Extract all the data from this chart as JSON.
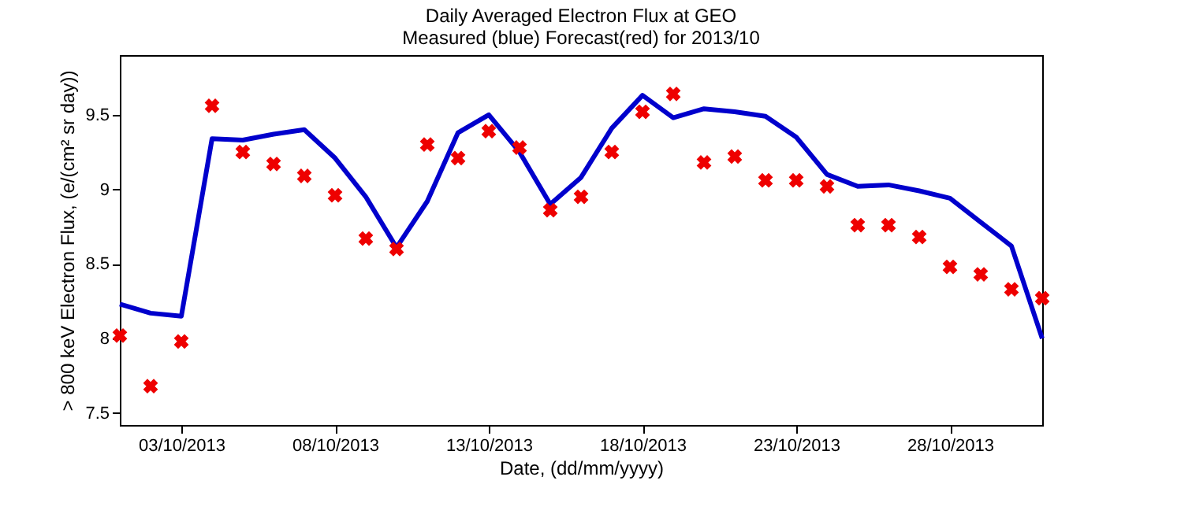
{
  "chart_data": {
    "type": "line",
    "title": "Daily Averaged Electron Flux at GEO",
    "subtitle": "Measured (blue) Forecast(red) for 2013/10",
    "xlabel": "Date, (dd/mm/yyyy)",
    "ylabel": "> 800 keV Electron Flux, (e/(cm² sr day))",
    "x": [
      "2013-10-01",
      "2013-10-02",
      "2013-10-03",
      "2013-10-04",
      "2013-10-05",
      "2013-10-06",
      "2013-10-07",
      "2013-10-08",
      "2013-10-09",
      "2013-10-10",
      "2013-10-11",
      "2013-10-12",
      "2013-10-13",
      "2013-10-14",
      "2013-10-15",
      "2013-10-16",
      "2013-10-17",
      "2013-10-18",
      "2013-10-19",
      "2013-10-20",
      "2013-10-21",
      "2013-10-22",
      "2013-10-23",
      "2013-10-24",
      "2013-10-25",
      "2013-10-26",
      "2013-10-27",
      "2013-10-28",
      "2013-10-29",
      "2013-10-30",
      "2013-10-31"
    ],
    "series": [
      {
        "color": "#0000cc",
        "values": [
          8.23,
          8.17,
          8.15,
          9.34,
          9.33,
          9.37,
          9.4,
          9.21,
          8.95,
          8.61,
          8.92,
          9.38,
          9.5,
          9.25,
          8.9,
          9.08,
          9.41,
          9.63,
          9.48,
          9.54,
          9.52,
          9.49,
          9.35,
          9.1,
          9.02,
          9.03,
          8.99,
          8.94,
          8.78,
          8.62,
          8.0
        ]
      },
      {
        "type": "scatter",
        "color": "#ee0000",
        "marker": "cross",
        "values": [
          8.02,
          7.68,
          7.98,
          9.56,
          9.25,
          9.17,
          9.09,
          8.96,
          8.67,
          8.6,
          9.3,
          9.21,
          9.39,
          9.28,
          8.86,
          8.95,
          9.25,
          9.52,
          9.64,
          9.18,
          9.22,
          9.06,
          9.06,
          9.02,
          8.76,
          8.76,
          8.68,
          8.48,
          8.43,
          8.33,
          8.27
        ]
      }
    ],
    "xlim": [
      "2013-10-01",
      "2013-10-31"
    ],
    "xticks": [
      {
        "value": "2013-10-03",
        "label": "03/10/2013"
      },
      {
        "value": "2013-10-08",
        "label": "08/10/2013"
      },
      {
        "value": "2013-10-13",
        "label": "13/10/2013"
      },
      {
        "value": "2013-10-18",
        "label": "18/10/2013"
      },
      {
        "value": "2013-10-23",
        "label": "23/10/2013"
      },
      {
        "value": "2013-10-28",
        "label": "28/10/2013"
      }
    ],
    "ylim": [
      7.42,
      9.9
    ],
    "yticks": [
      7.5,
      8,
      8.5,
      9,
      9.5
    ],
    "grid": false
  }
}
